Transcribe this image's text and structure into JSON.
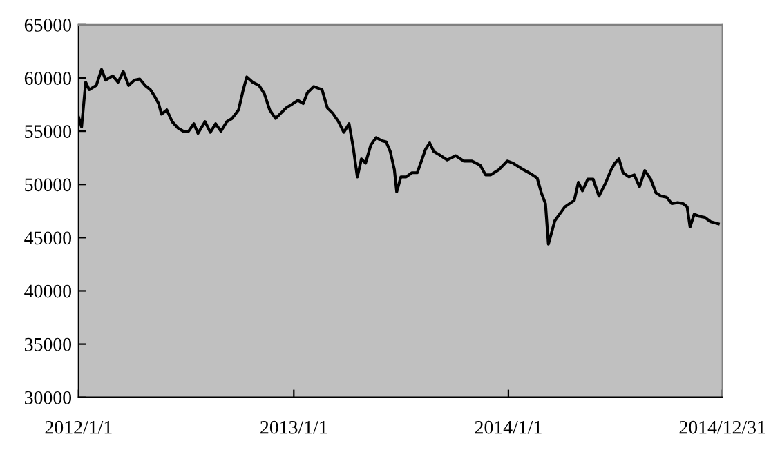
{
  "chart_data": {
    "type": "line",
    "ylim": [
      30000,
      65000
    ],
    "yticks": [
      30000,
      35000,
      40000,
      45000,
      50000,
      55000,
      60000,
      65000
    ],
    "xlim": [
      "2012-01-01",
      "2014-12-31"
    ],
    "xticks": [
      {
        "value": "2012-01-01",
        "label": "2012/1/1"
      },
      {
        "value": "2013-01-01",
        "label": "2013/1/1"
      },
      {
        "value": "2014-01-01",
        "label": "2014/1/1"
      },
      {
        "value": "2014-12-31",
        "label": "2014/12/31"
      }
    ],
    "grid": false,
    "legend": false,
    "marker": "none",
    "line_style": "solid",
    "series": [
      {
        "color": "#000000",
        "x": [
          "2012-01-01",
          "2012-01-06",
          "2012-01-13",
          "2012-01-19",
          "2012-01-31",
          "2012-02-09",
          "2012-02-16",
          "2012-02-28",
          "2012-03-08",
          "2012-03-17",
          "2012-03-26",
          "2012-04-05",
          "2012-04-14",
          "2012-04-23",
          "2012-05-02",
          "2012-05-09",
          "2012-05-16",
          "2012-05-21",
          "2012-05-30",
          "2012-06-08",
          "2012-06-18",
          "2012-06-27",
          "2012-07-06",
          "2012-07-15",
          "2012-07-22",
          "2012-08-03",
          "2012-08-12",
          "2012-08-21",
          "2012-08-30",
          "2012-09-09",
          "2012-09-18",
          "2012-09-29",
          "2012-10-07",
          "2012-10-13",
          "2012-10-23",
          "2012-11-03",
          "2012-11-12",
          "2012-11-21",
          "2012-12-01",
          "2012-12-10",
          "2012-12-19",
          "2012-12-28",
          "2013-01-08",
          "2013-01-17",
          "2013-01-24",
          "2013-02-04",
          "2013-02-18",
          "2013-02-27",
          "2013-03-08",
          "2013-03-18",
          "2013-03-27",
          "2013-04-05",
          "2013-04-12",
          "2013-04-19",
          "2013-04-26",
          "2013-05-03",
          "2013-05-12",
          "2013-05-21",
          "2013-05-31",
          "2013-06-07",
          "2013-06-14",
          "2013-06-21",
          "2013-06-25",
          "2013-07-02",
          "2013-07-11",
          "2013-07-21",
          "2013-07-30",
          "2013-08-13",
          "2013-08-20",
          "2013-08-27",
          "2013-09-05",
          "2013-09-19",
          "2013-10-03",
          "2013-10-17",
          "2013-10-31",
          "2013-11-14",
          "2013-11-23",
          "2013-12-02",
          "2013-12-16",
          "2013-12-30",
          "2014-01-09",
          "2014-01-23",
          "2014-02-08",
          "2014-02-19",
          "2014-02-26",
          "2014-03-05",
          "2014-03-10",
          "2014-03-21",
          "2014-04-07",
          "2014-04-23",
          "2014-04-30",
          "2014-05-07",
          "2014-05-16",
          "2014-05-25",
          "2014-06-04",
          "2014-06-15",
          "2014-06-24",
          "2014-07-01",
          "2014-07-08",
          "2014-07-15",
          "2014-07-25",
          "2014-08-03",
          "2014-08-12",
          "2014-08-21",
          "2014-08-31",
          "2014-09-09",
          "2014-09-18",
          "2014-09-27",
          "2014-10-06",
          "2014-10-16",
          "2014-10-25",
          "2014-11-01",
          "2014-11-06",
          "2014-11-13",
          "2014-11-22",
          "2014-12-01",
          "2014-12-11",
          "2014-12-24"
        ],
        "values": [
          56300,
          55400,
          59600,
          58900,
          59300,
          60800,
          59800,
          60200,
          59600,
          60600,
          59300,
          59800,
          59900,
          59300,
          58900,
          58300,
          57600,
          56600,
          57000,
          55900,
          55300,
          55000,
          55000,
          55700,
          54800,
          55900,
          54900,
          55700,
          55000,
          55900,
          56200,
          57000,
          58900,
          60100,
          59600,
          59300,
          58500,
          57000,
          56200,
          56700,
          57200,
          57500,
          57900,
          57600,
          58600,
          59200,
          58900,
          57200,
          56700,
          55900,
          54900,
          55700,
          53500,
          50700,
          52400,
          52000,
          53700,
          54400,
          54100,
          54000,
          53100,
          51400,
          49300,
          50700,
          50700,
          51100,
          51100,
          53300,
          53900,
          53100,
          52800,
          52300,
          52700,
          52200,
          52200,
          51800,
          50900,
          50900,
          51400,
          52200,
          52000,
          51500,
          51000,
          50600,
          49200,
          48200,
          44400,
          46600,
          47900,
          48500,
          50200,
          49400,
          50500,
          50500,
          48900,
          50100,
          51300,
          52000,
          52400,
          51100,
          50700,
          50900,
          49800,
          51300,
          50500,
          49200,
          48900,
          48800,
          48200,
          48300,
          48200,
          47900,
          46000,
          47200,
          47000,
          46900,
          46500,
          46300
        ]
      }
    ]
  }
}
